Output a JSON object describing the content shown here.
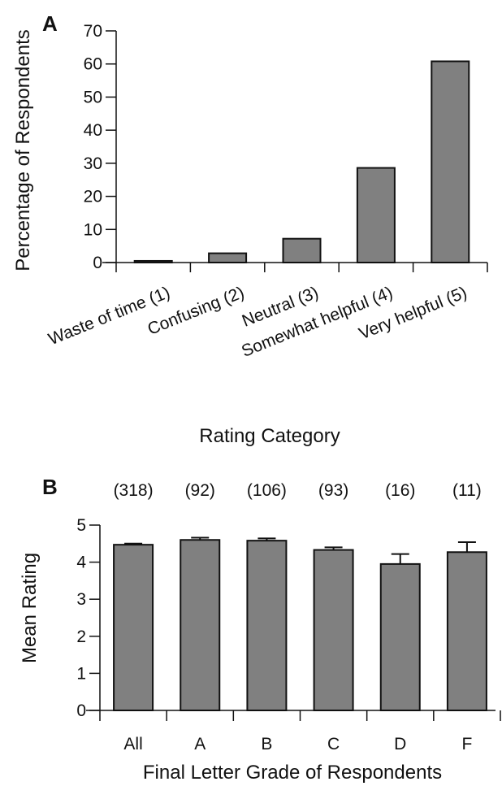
{
  "chart_data": [
    {
      "panel": "A",
      "type": "bar",
      "categories": [
        "Waste of time (1)",
        "Confusing (2)",
        "Neutral (3)",
        "Somewhat helpful (4)",
        "Very helpful (5)"
      ],
      "values": [
        0.5,
        2.8,
        7.2,
        28.6,
        60.8
      ],
      "xlabel": "Rating Category",
      "ylabel": "Percentage of Respondents",
      "ylim": [
        0,
        70
      ],
      "yticks": [
        0,
        10,
        20,
        30,
        40,
        50,
        60,
        70
      ],
      "grid": false,
      "bar_color": "#808080"
    },
    {
      "panel": "B",
      "type": "bar",
      "categories": [
        "All",
        "A",
        "B",
        "C",
        "D",
        "F"
      ],
      "values": [
        4.47,
        4.6,
        4.58,
        4.33,
        3.95,
        4.27
      ],
      "errors": [
        0.03,
        0.06,
        0.06,
        0.07,
        0.27,
        0.27
      ],
      "counts": [
        "(318)",
        "(92)",
        "(106)",
        "(93)",
        "(16)",
        "(11)"
      ],
      "xlabel": "Final Letter Grade of Respondents",
      "ylabel": "Mean Rating",
      "ylim": [
        0,
        5
      ],
      "yticks": [
        0,
        1,
        2,
        3,
        4,
        5
      ],
      "grid": false,
      "bar_color": "#808080"
    }
  ]
}
